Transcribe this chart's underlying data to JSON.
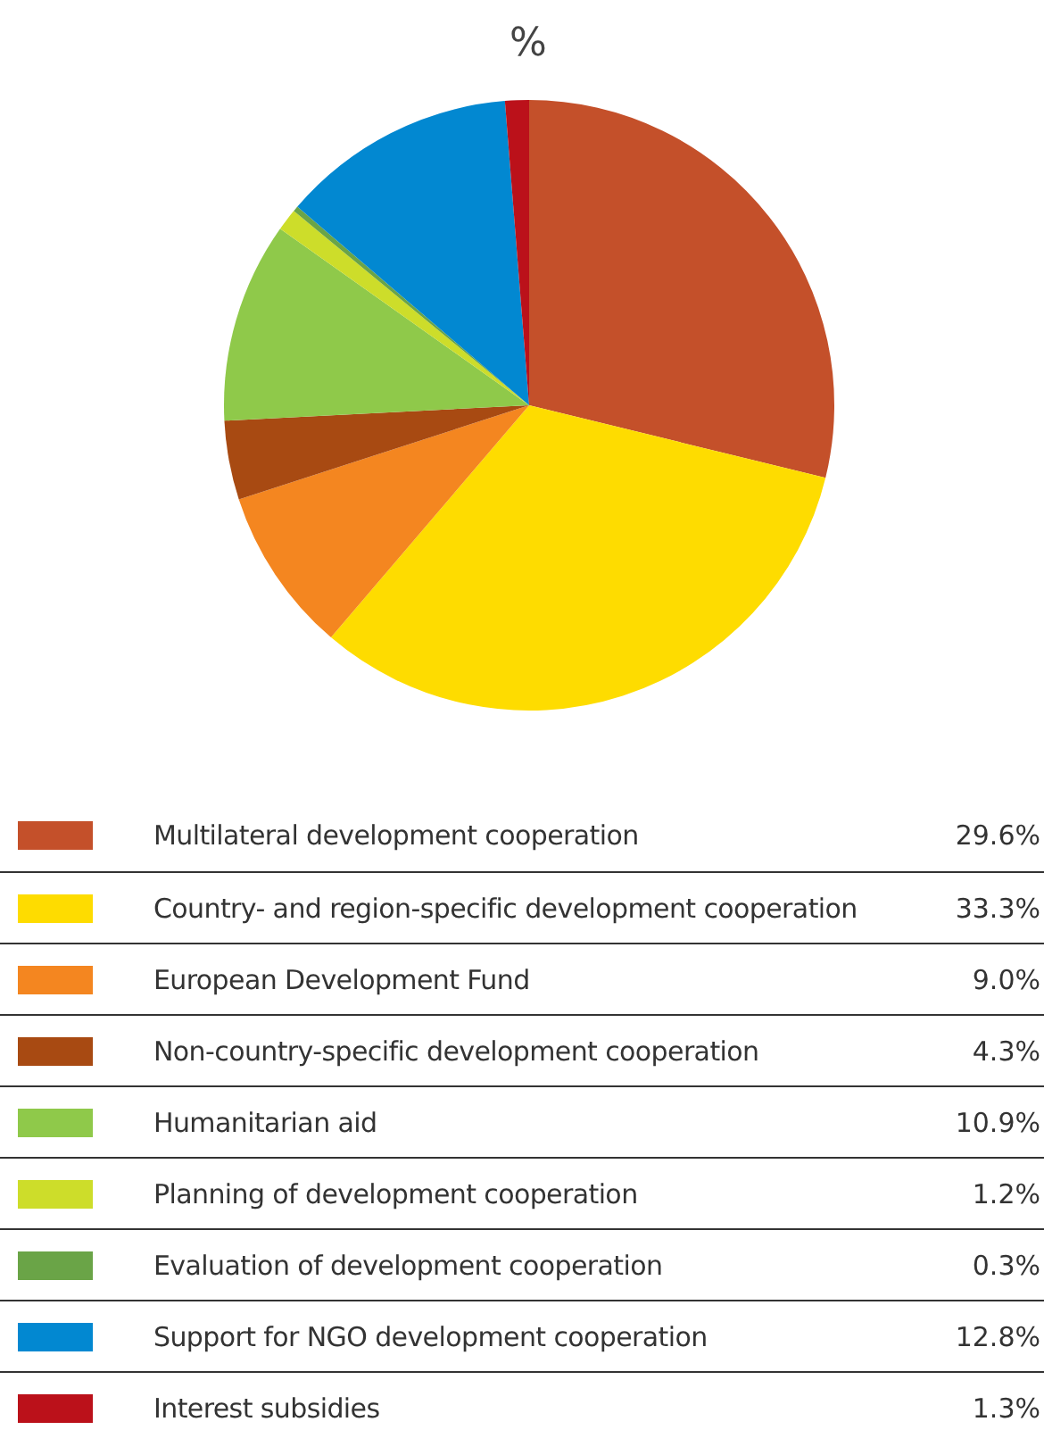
{
  "chart_data": {
    "type": "pie",
    "title": "%",
    "categories": [
      "Multilateral development cooperation",
      "Country- and region-specific development cooperation",
      "European Development Fund",
      "Non-country-specific development cooperation",
      "Humanitarian aid",
      "Planning of development cooperation",
      "Evaluation of development cooperation",
      "Support for NGO development cooperation",
      "Interest subsidies"
    ],
    "values": [
      29.6,
      33.3,
      9.0,
      4.3,
      10.9,
      1.2,
      0.3,
      12.8,
      1.3
    ],
    "value_labels": [
      "29.6%",
      "33.3%",
      "9.0%",
      "4.3%",
      "10.9%",
      "1.2%",
      "0.3%",
      "12.8%",
      "1.3%"
    ],
    "colors": [
      "#c4502a",
      "#fedc00",
      "#f48620",
      "#a84a12",
      "#8fc94a",
      "#cddd2a",
      "#6aa447",
      "#0288d1",
      "#bb111a"
    ],
    "legend": "bottom"
  }
}
